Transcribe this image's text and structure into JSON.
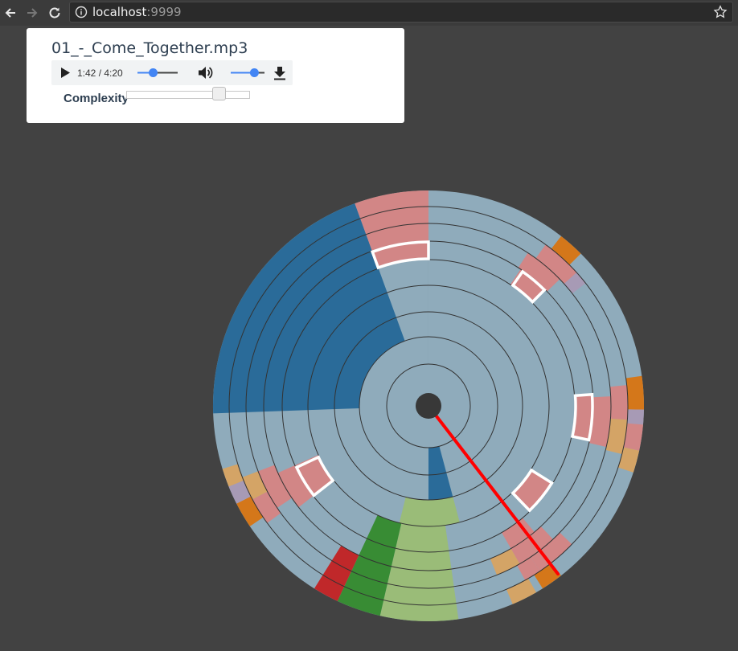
{
  "browser": {
    "url_host": "localhost",
    "url_port": ":9999",
    "icons": [
      "back-arrow-icon",
      "forward-arrow-icon",
      "reload-icon",
      "info-icon",
      "bookmark-star-icon"
    ]
  },
  "player": {
    "filename": "01_-_Come_Together.mp3",
    "time_current": "1:42",
    "time_total": "4:20",
    "time_display": "1:42 / 4:20",
    "seek_fraction": 0.39,
    "volume_fraction": 0.7,
    "complexity_label": "Complexity",
    "complexity_fraction": 0.78,
    "accent_color": "#4285f4"
  },
  "visualization": {
    "playhead_color": "#ff0000",
    "ring_count": 8,
    "colors": {
      "base": "#8fabbb",
      "dark_blue": "#2a6b99",
      "pink": "#d28686",
      "orange": "#d4771a",
      "tan": "#d4a466",
      "lavender": "#a79ab5",
      "red": "#c0282a",
      "green": "#388c34",
      "light_green": "#9abc78",
      "highlight": "#ffffff"
    }
  }
}
